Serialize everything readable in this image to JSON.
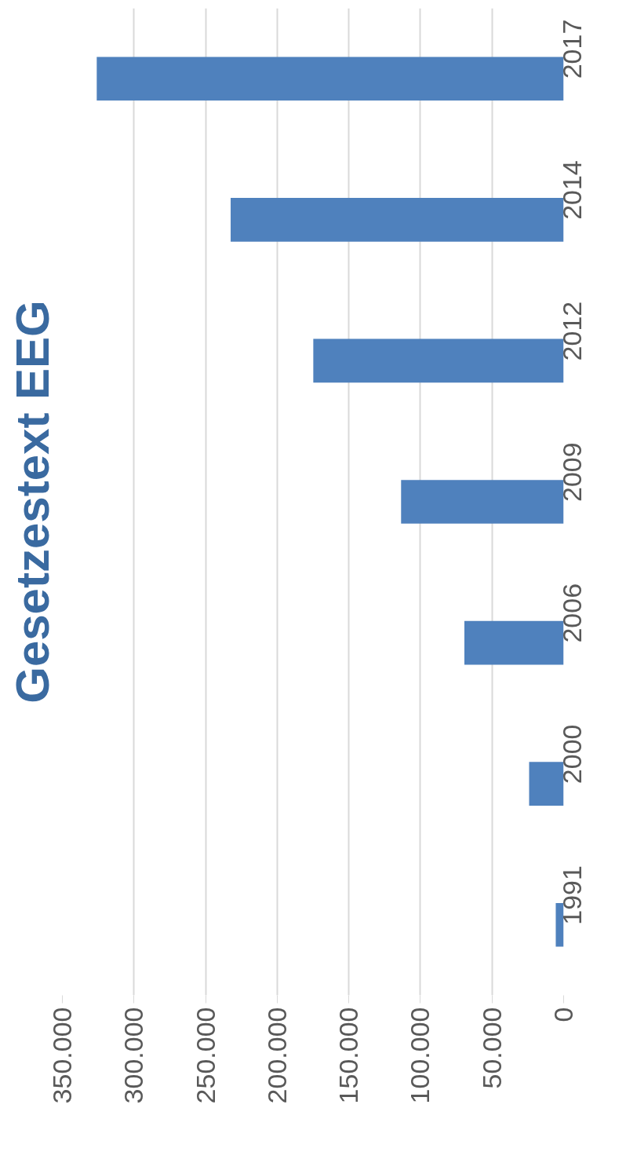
{
  "chart_data": {
    "type": "bar",
    "orientation": "horizontal",
    "title": "Gesetzestext EEG",
    "categories": [
      "2017",
      "2014",
      "2012",
      "2009",
      "2006",
      "2000",
      "1991"
    ],
    "values": [
      326000,
      232500,
      174800,
      113500,
      69300,
      24100,
      5500
    ],
    "color": "#4f81bd",
    "xlim": [
      350000,
      0
    ],
    "xticks": [
      {
        "value": 350000,
        "label": "350.000"
      },
      {
        "value": 300000,
        "label": "300.000"
      },
      {
        "value": 250000,
        "label": "250.000"
      },
      {
        "value": 200000,
        "label": "200.000"
      },
      {
        "value": 150000,
        "label": "150.000"
      },
      {
        "value": 100000,
        "label": "100.000"
      },
      {
        "value": 50000,
        "label": "50.000"
      },
      0
    ],
    "grid": "x"
  }
}
